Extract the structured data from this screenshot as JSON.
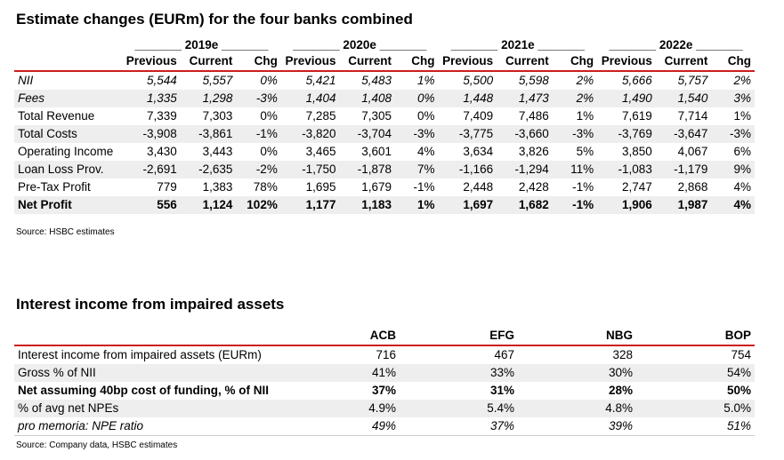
{
  "t1": {
    "title": "Estimate changes (EURm) for the four banks combined",
    "years": [
      "2019e",
      "2020e",
      "2021e",
      "2022e"
    ],
    "subheaders": [
      "Previous",
      "Current",
      "Chg"
    ],
    "rows": [
      {
        "label": "NII",
        "v": [
          "5,544",
          "5,557",
          "0%",
          "5,421",
          "5,483",
          "1%",
          "5,500",
          "5,598",
          "2%",
          "5,666",
          "5,757",
          "2%"
        ]
      },
      {
        "label": "Fees",
        "v": [
          "1,335",
          "1,298",
          "-3%",
          "1,404",
          "1,408",
          "0%",
          "1,448",
          "1,473",
          "2%",
          "1,490",
          "1,540",
          "3%"
        ]
      },
      {
        "label": "Total Revenue",
        "v": [
          "7,339",
          "7,303",
          "0%",
          "7,285",
          "7,305",
          "0%",
          "7,409",
          "7,486",
          "1%",
          "7,619",
          "7,714",
          "1%"
        ]
      },
      {
        "label": "Total Costs",
        "v": [
          "-3,908",
          "-3,861",
          "-1%",
          "-3,820",
          "-3,704",
          "-3%",
          "-3,775",
          "-3,660",
          "-3%",
          "-3,769",
          "-3,647",
          "-3%"
        ]
      },
      {
        "label": "Operating Income",
        "v": [
          "3,430",
          "3,443",
          "0%",
          "3,465",
          "3,601",
          "4%",
          "3,634",
          "3,826",
          "5%",
          "3,850",
          "4,067",
          "6%"
        ]
      },
      {
        "label": "Loan Loss Prov.",
        "v": [
          "-2,691",
          "-2,635",
          "-2%",
          "-1,750",
          "-1,878",
          "7%",
          "-1,166",
          "-1,294",
          "11%",
          "-1,083",
          "-1,179",
          "9%"
        ]
      },
      {
        "label": "Pre-Tax Profit",
        "v": [
          "779",
          "1,383",
          "78%",
          "1,695",
          "1,679",
          "-1%",
          "2,448",
          "2,428",
          "-1%",
          "2,747",
          "2,868",
          "4%"
        ]
      },
      {
        "label": "Net Profit",
        "v": [
          "556",
          "1,124",
          "102%",
          "1,177",
          "1,183",
          "1%",
          "1,697",
          "1,682",
          "-1%",
          "1,906",
          "1,987",
          "4%"
        ]
      }
    ],
    "source": "Source: HSBC estimates"
  },
  "t2": {
    "title": "Interest income from impaired assets",
    "columns": [
      "ACB",
      "EFG",
      "NBG",
      "BOP"
    ],
    "rows": [
      {
        "label": "Interest income from impaired assets (EURm)",
        "v": [
          "716",
          "467",
          "328",
          "754"
        ]
      },
      {
        "label": "Gross % of NII",
        "v": [
          "41%",
          "33%",
          "30%",
          "54%"
        ]
      },
      {
        "label": "Net assuming 40bp cost of funding, % of NII",
        "v": [
          "37%",
          "31%",
          "28%",
          "50%"
        ]
      },
      {
        "label": "% of avg net NPEs",
        "v": [
          "4.9%",
          "5.4%",
          "4.8%",
          "5.0%"
        ]
      },
      {
        "label": "pro memoria: NPE ratio",
        "v": [
          "49%",
          "37%",
          "39%",
          "51%"
        ]
      }
    ],
    "source": "Source: Company data, HSBC estimates"
  }
}
